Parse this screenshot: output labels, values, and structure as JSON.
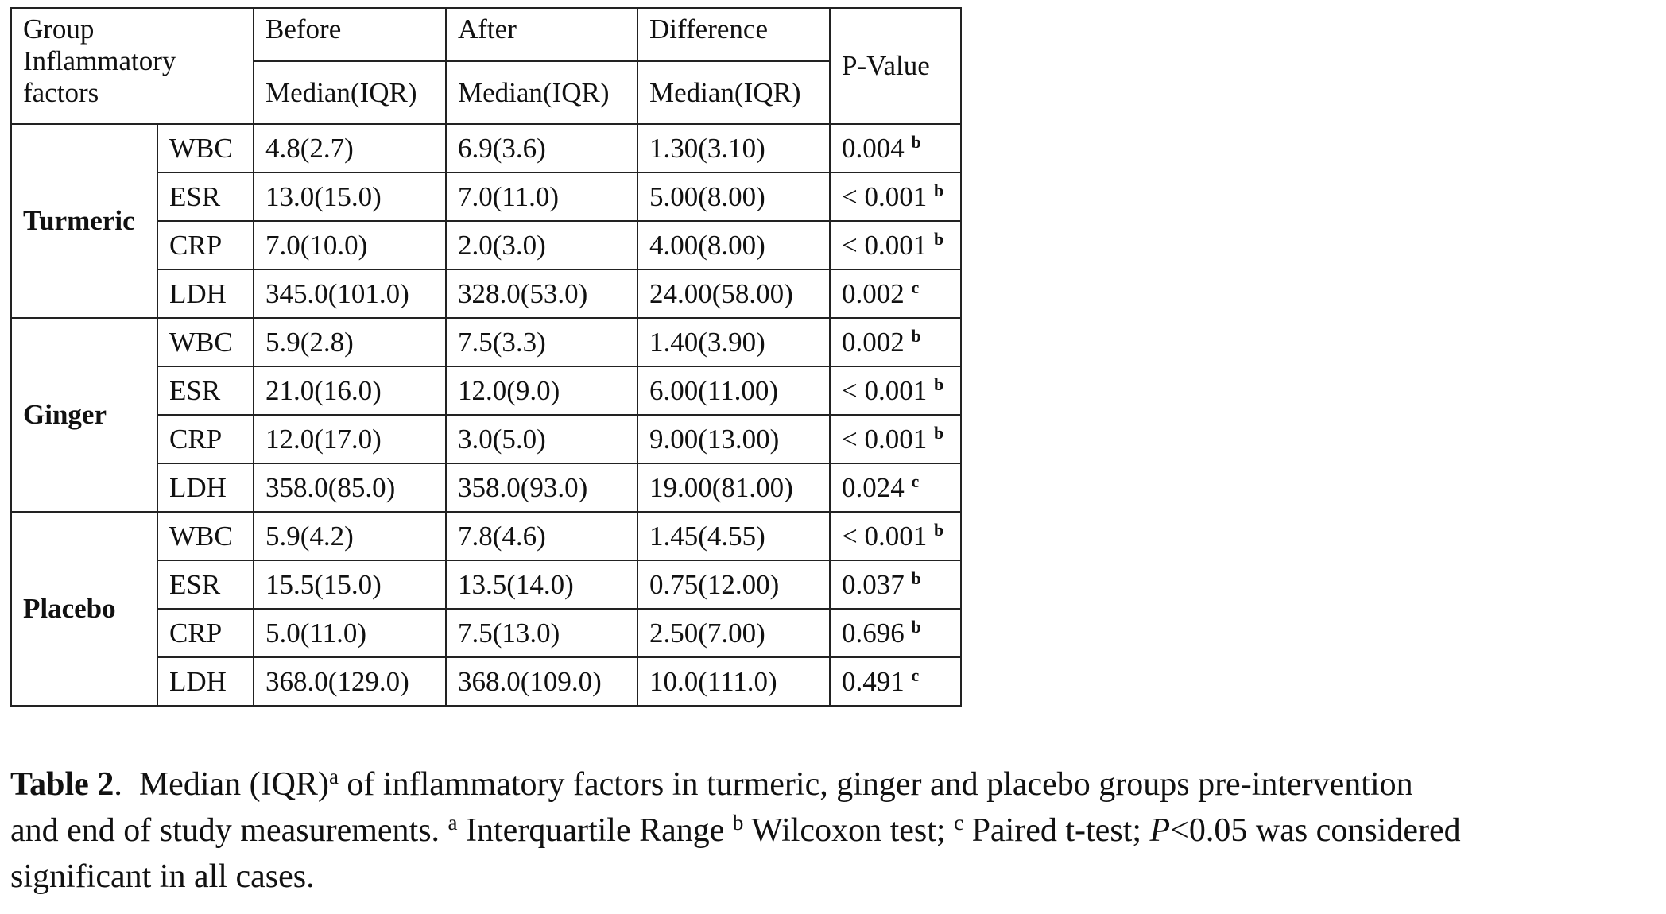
{
  "table": {
    "header": {
      "group": "Group Inflammatory factors",
      "before": "Before",
      "after": "After",
      "difference": "Difference",
      "sub": "Median(IQR)",
      "p_value": "P-Value"
    },
    "groups": [
      {
        "name": "Turmeric",
        "rows": [
          [
            "WBC",
            "4.8(2.7)",
            "6.9(3.6)",
            "1.30(3.10)",
            "0.004",
            "b"
          ],
          [
            "ESR",
            "13.0(15.0)",
            "7.0(11.0)",
            "5.00(8.00)",
            "< 0.001",
            "b"
          ],
          [
            "CRP",
            "7.0(10.0)",
            "2.0(3.0)",
            "4.00(8.00)",
            "< 0.001",
            "b"
          ],
          [
            "LDH",
            "345.0(101.0)",
            "328.0(53.0)",
            "24.00(58.00)",
            "0.002",
            "c"
          ]
        ]
      },
      {
        "name": "Ginger",
        "rows": [
          [
            "WBC",
            "5.9(2.8)",
            "7.5(3.3)",
            "1.40(3.90)",
            "0.002",
            "b"
          ],
          [
            "ESR",
            "21.0(16.0)",
            "12.0(9.0)",
            "6.00(11.00)",
            "< 0.001",
            "b"
          ],
          [
            "CRP",
            "12.0(17.0)",
            "3.0(5.0)",
            "9.00(13.00)",
            "< 0.001",
            "b"
          ],
          [
            "LDH",
            "358.0(85.0)",
            "358.0(93.0)",
            "19.00(81.00)",
            "0.024",
            "c"
          ]
        ]
      },
      {
        "name": "Placebo",
        "rows": [
          [
            "WBC",
            "5.9(4.2)",
            "7.8(4.6)",
            "1.45(4.55)",
            "< 0.001",
            "b"
          ],
          [
            "ESR",
            "15.5(15.0)",
            "13.5(14.0)",
            "0.75(12.00)",
            "0.037",
            "b"
          ],
          [
            "CRP",
            "5.0(11.0)",
            "7.5(13.0)",
            "2.50(7.00)",
            "0.696",
            "b"
          ],
          [
            "LDH",
            "368.0(129.0)",
            "368.0(109.0)",
            "10.0(111.0)",
            "0.491",
            "c"
          ]
        ]
      }
    ]
  },
  "caption": {
    "lines": [
      [
        {
          "text": "Table 2",
          "style": "bold"
        },
        {
          "text": ".  Median (IQR)"
        },
        {
          "text": "a",
          "style": "sup"
        },
        {
          "text": " of inflammatory factors in turmeric, ginger and placebo groups pre-intervention"
        }
      ],
      [
        {
          "text": "and end of study measurements. "
        },
        {
          "text": "a",
          "style": "sup"
        },
        {
          "text": " Interquartile Range "
        },
        {
          "text": "b",
          "style": "sup"
        },
        {
          "text": " Wilcoxon test; "
        },
        {
          "text": "c",
          "style": "sup"
        },
        {
          "text": " Paired t-test; "
        },
        {
          "text": "P",
          "style": "italic"
        },
        {
          "text": "<0.05 was considered"
        }
      ],
      [
        {
          "text": "significant in all cases."
        }
      ]
    ]
  }
}
